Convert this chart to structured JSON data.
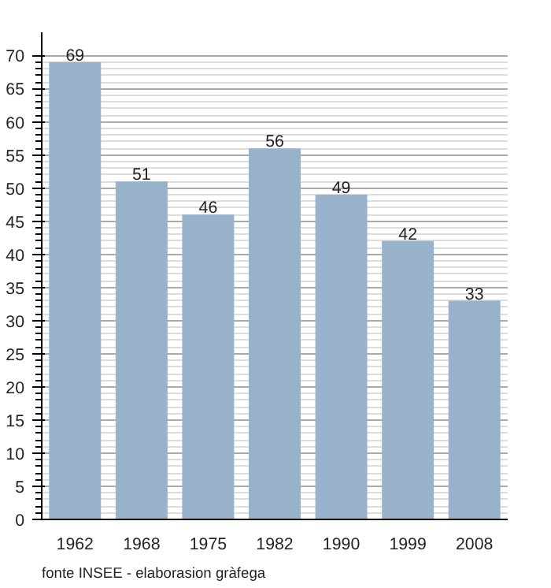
{
  "chart_data": {
    "type": "bar",
    "categories": [
      "1962",
      "1968",
      "1975",
      "1982",
      "1990",
      "1999",
      "2008"
    ],
    "values": [
      69,
      51,
      46,
      56,
      49,
      42,
      33
    ],
    "color": "#98b2cb",
    "ylim": [
      0,
      70
    ],
    "yticks": [
      0,
      5,
      10,
      15,
      20,
      25,
      30,
      35,
      40,
      45,
      50,
      55,
      60,
      65,
      70
    ],
    "grid": "y",
    "data_labels": true,
    "annotations": [
      "fonte INSEE - elaborasion gràfega"
    ]
  }
}
